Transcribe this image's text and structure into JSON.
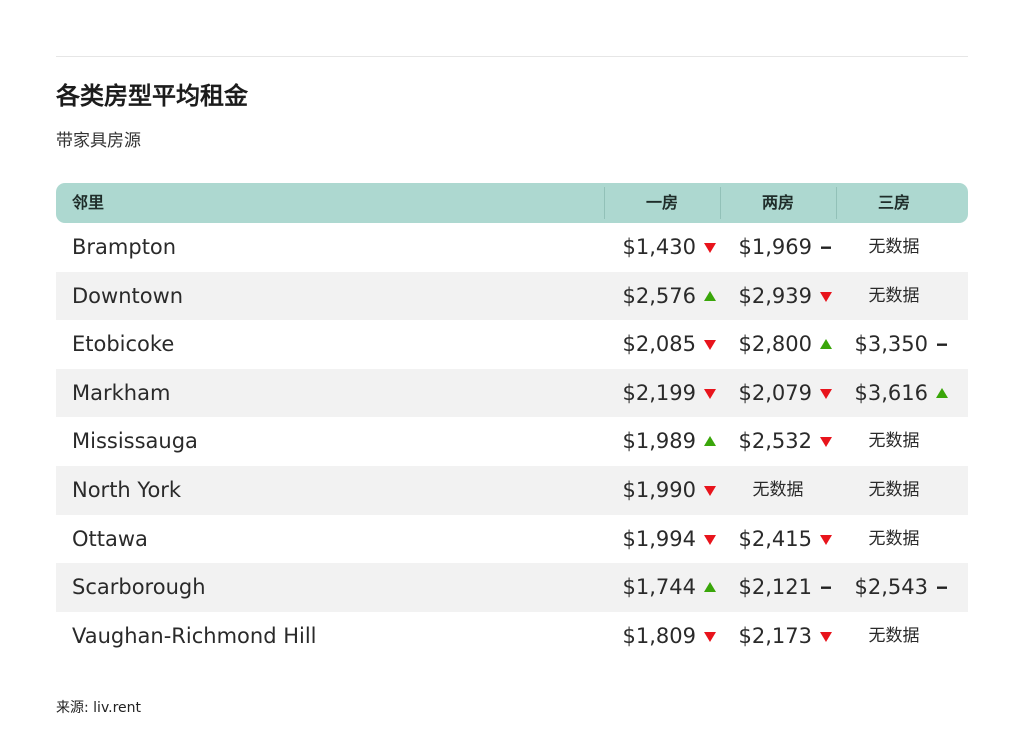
{
  "title": "各类房型平均租金",
  "subtitle": "带家具房源",
  "table": {
    "columns": {
      "neighborhood": "邻里",
      "one_bedroom": "一房",
      "two_bedroom": "两房",
      "three_bedroom": "三房"
    },
    "rows": [
      {
        "name": "Brampton",
        "c1": {
          "value": "$1,430",
          "trend": "down"
        },
        "c2": {
          "value": "$1,969",
          "trend": "flat"
        },
        "c3": {
          "value": "无数据",
          "trend": "none"
        }
      },
      {
        "name": "Downtown",
        "c1": {
          "value": "$2,576",
          "trend": "up"
        },
        "c2": {
          "value": "$2,939",
          "trend": "down"
        },
        "c3": {
          "value": "无数据",
          "trend": "none"
        }
      },
      {
        "name": "Etobicoke",
        "c1": {
          "value": "$2,085",
          "trend": "down"
        },
        "c2": {
          "value": "$2,800",
          "trend": "up"
        },
        "c3": {
          "value": "$3,350",
          "trend": "flat"
        }
      },
      {
        "name": "Markham",
        "c1": {
          "value": "$2,199",
          "trend": "down"
        },
        "c2": {
          "value": "$2,079",
          "trend": "down"
        },
        "c3": {
          "value": "$3,616",
          "trend": "up"
        }
      },
      {
        "name": "Mississauga",
        "c1": {
          "value": "$1,989",
          "trend": "up"
        },
        "c2": {
          "value": "$2,532",
          "trend": "down"
        },
        "c3": {
          "value": "无数据",
          "trend": "none"
        }
      },
      {
        "name": "North York",
        "c1": {
          "value": "$1,990",
          "trend": "down"
        },
        "c2": {
          "value": "无数据",
          "trend": "none"
        },
        "c3": {
          "value": "无数据",
          "trend": "none"
        }
      },
      {
        "name": "Ottawa",
        "c1": {
          "value": "$1,994",
          "trend": "down"
        },
        "c2": {
          "value": "$2,415",
          "trend": "down"
        },
        "c3": {
          "value": "无数据",
          "trend": "none"
        }
      },
      {
        "name": "Scarborough",
        "c1": {
          "value": "$1,744",
          "trend": "up"
        },
        "c2": {
          "value": "$2,121",
          "trend": "flat"
        },
        "c3": {
          "value": "$2,543",
          "trend": "flat"
        }
      },
      {
        "name": "Vaughan-Richmond Hill",
        "c1": {
          "value": "$1,809",
          "trend": "down"
        },
        "c2": {
          "value": "$2,173",
          "trend": "down"
        },
        "c3": {
          "value": "无数据",
          "trend": "none"
        }
      }
    ]
  },
  "source": "来源: liv.rent",
  "colors": {
    "header_bg": "#add8d0",
    "row_alt_bg": "#f2f2f2",
    "trend_up": "#3aa60a",
    "trend_down": "#e8141c",
    "trend_flat": "#222222"
  },
  "icons": {
    "up": "trend-up-icon",
    "down": "trend-down-icon",
    "flat": "trend-flat-icon"
  }
}
